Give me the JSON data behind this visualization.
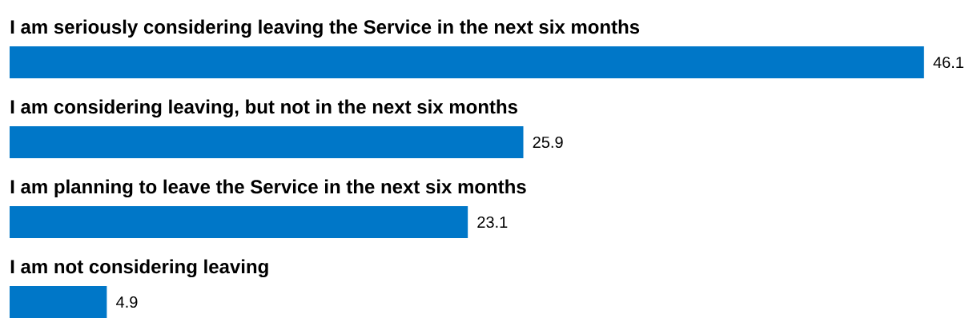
{
  "chart_data": {
    "type": "bar",
    "orientation": "horizontal",
    "categories": [
      "I am seriously considering leaving the Service in the next six months",
      "I am considering leaving, but not in the next six months",
      "I am planning to leave the Service in the next six months",
      "I am not considering leaving"
    ],
    "values": [
      46.1,
      25.9,
      23.1,
      4.9
    ],
    "color": "#0077c8",
    "data_labels": true
  }
}
